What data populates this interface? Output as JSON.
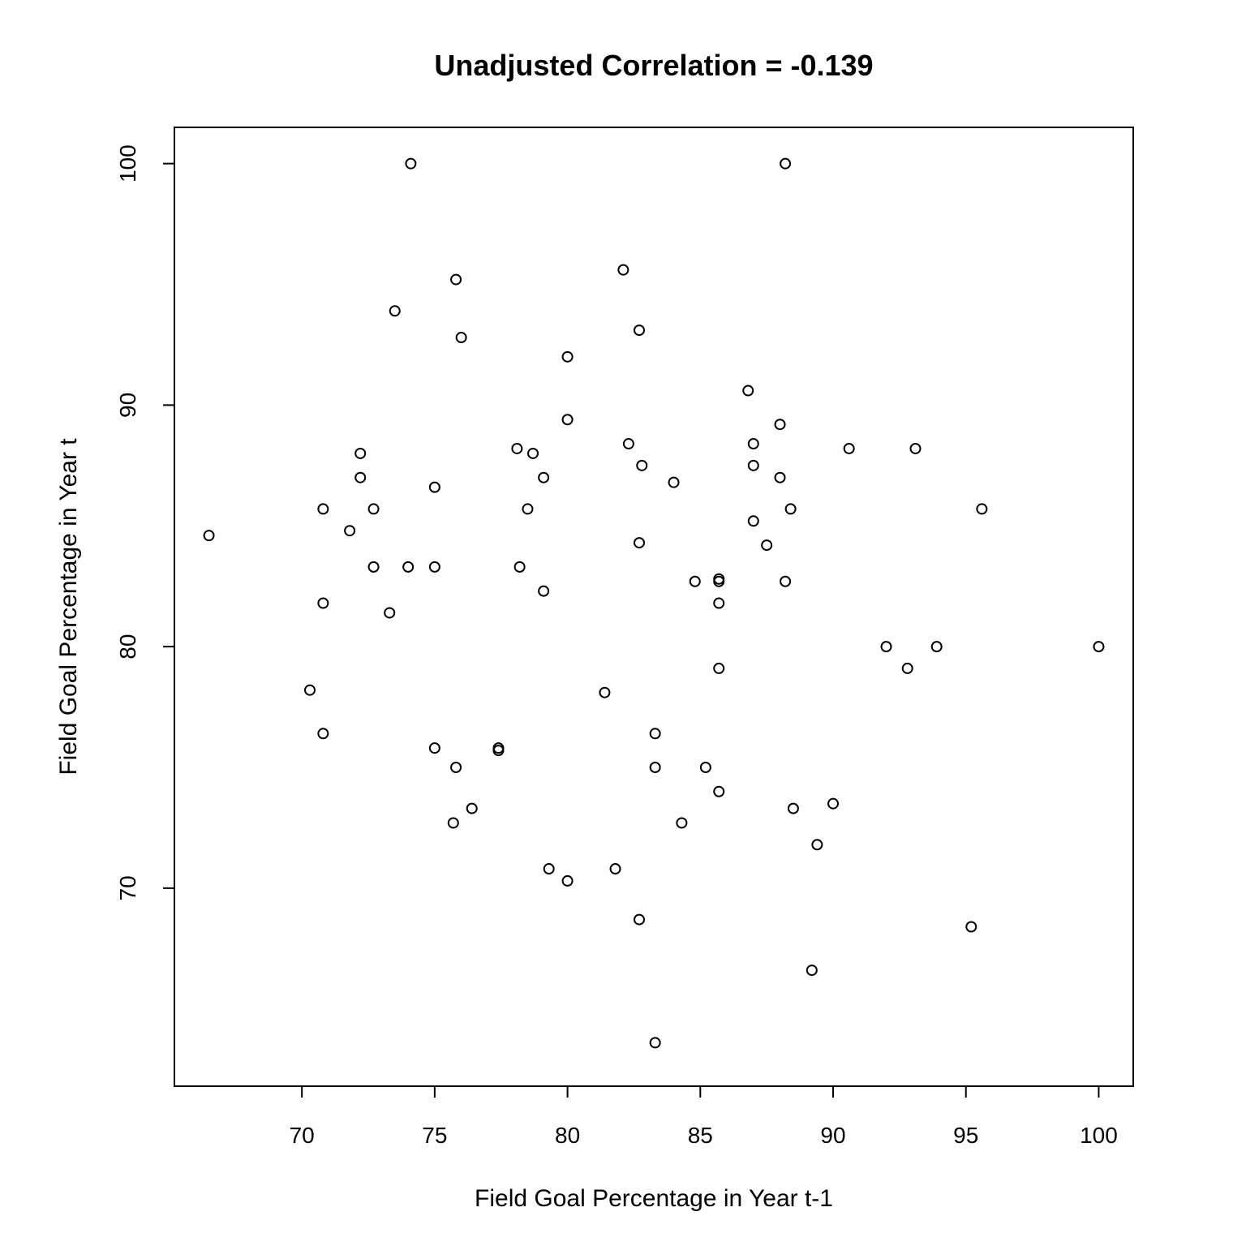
{
  "chart_data": {
    "type": "scatter",
    "title": "Unadjusted Correlation = -0.139",
    "xlabel": "Field Goal Percentage in Year t-1",
    "ylabel": "Field Goal Percentage in Year t",
    "xlim": [
      65.2,
      101.3
    ],
    "ylim": [
      61.8,
      101.5
    ],
    "xticks": [
      70,
      75,
      80,
      85,
      90,
      95,
      100
    ],
    "yticks": [
      70,
      80,
      90,
      100
    ],
    "grid": false,
    "points": [
      [
        74.1,
        100
      ],
      [
        88.2,
        100
      ],
      [
        82.1,
        95.6
      ],
      [
        75.8,
        95.2
      ],
      [
        73.5,
        93.9
      ],
      [
        76.0,
        92.8
      ],
      [
        82.7,
        93.1
      ],
      [
        80.0,
        92.0
      ],
      [
        86.8,
        90.6
      ],
      [
        80.0,
        89.4
      ],
      [
        88.0,
        89.2
      ],
      [
        78.1,
        88.2
      ],
      [
        78.7,
        88.0
      ],
      [
        72.2,
        88.0
      ],
      [
        82.3,
        88.4
      ],
      [
        87.0,
        88.4
      ],
      [
        90.6,
        88.2
      ],
      [
        93.1,
        88.2
      ],
      [
        72.2,
        87.0
      ],
      [
        79.1,
        87.0
      ],
      [
        82.8,
        87.5
      ],
      [
        87.0,
        87.5
      ],
      [
        88.0,
        87.0
      ],
      [
        75.0,
        86.6
      ],
      [
        84.0,
        86.8
      ],
      [
        70.8,
        85.7
      ],
      [
        72.7,
        85.7
      ],
      [
        78.5,
        85.7
      ],
      [
        88.4,
        85.7
      ],
      [
        95.6,
        85.7
      ],
      [
        87.0,
        85.2
      ],
      [
        66.5,
        84.6
      ],
      [
        71.8,
        84.8
      ],
      [
        82.7,
        84.3
      ],
      [
        87.5,
        84.2
      ],
      [
        72.7,
        83.3
      ],
      [
        74.0,
        83.3
      ],
      [
        75.0,
        83.3
      ],
      [
        78.2,
        83.3
      ],
      [
        84.8,
        82.7
      ],
      [
        85.7,
        82.8
      ],
      [
        85.7,
        82.7
      ],
      [
        88.2,
        82.7
      ],
      [
        79.1,
        82.3
      ],
      [
        70.8,
        81.8
      ],
      [
        85.7,
        81.8
      ],
      [
        73.3,
        81.4
      ],
      [
        92.0,
        80.0
      ],
      [
        93.9,
        80.0
      ],
      [
        100.0,
        80.0
      ],
      [
        85.7,
        79.1
      ],
      [
        92.8,
        79.1
      ],
      [
        70.3,
        78.2
      ],
      [
        81.4,
        78.1
      ],
      [
        70.8,
        76.4
      ],
      [
        83.3,
        76.4
      ],
      [
        75.0,
        75.8
      ],
      [
        77.4,
        75.8
      ],
      [
        77.4,
        75.7
      ],
      [
        75.8,
        75.0
      ],
      [
        83.3,
        75.0
      ],
      [
        85.2,
        75.0
      ],
      [
        85.7,
        74.0
      ],
      [
        76.4,
        73.3
      ],
      [
        88.5,
        73.3
      ],
      [
        90.0,
        73.5
      ],
      [
        75.7,
        72.7
      ],
      [
        84.3,
        72.7
      ],
      [
        89.4,
        71.8
      ],
      [
        79.3,
        70.8
      ],
      [
        81.8,
        70.8
      ],
      [
        80.0,
        70.3
      ],
      [
        82.7,
        68.7
      ],
      [
        95.2,
        68.4
      ],
      [
        89.2,
        66.6
      ],
      [
        83.3,
        63.6
      ]
    ]
  }
}
